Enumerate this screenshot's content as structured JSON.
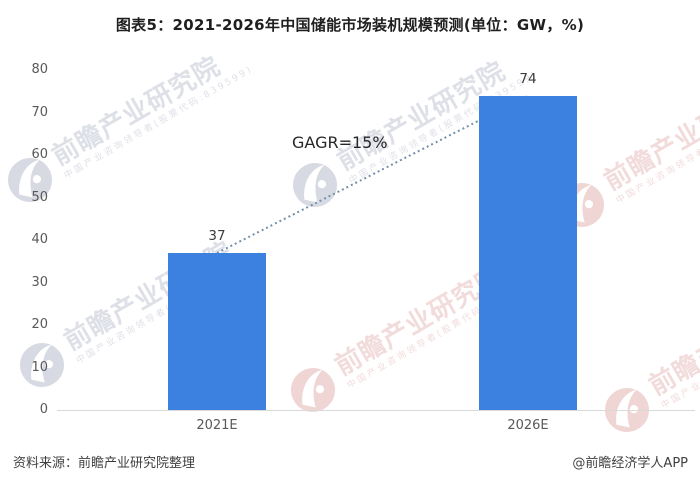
{
  "title": "图表5：2021-2026年中国储能市场装机规模预测(单位：GW，%)",
  "chart_data": {
    "type": "bar",
    "categories": [
      "2021E",
      "2026E"
    ],
    "values": [
      37,
      74
    ],
    "value_labels": [
      "37",
      "74"
    ],
    "title": "图表5：2021-2026年中国储能市场装机规模预测(单位：GW，%)",
    "xlabel": "",
    "ylabel": "",
    "unit": "GW",
    "ylim": [
      0,
      80
    ],
    "yticks": [
      0,
      10,
      20,
      30,
      40,
      50,
      60,
      70,
      80
    ],
    "grid": false,
    "legend": "none",
    "bar_color": "#3d81e0",
    "axis_line_color": "#d9d9d9",
    "annotation": {
      "label": "GAGR=15%",
      "line_style": "dotted",
      "line_color": "#7591ad",
      "connects": [
        "top of 2021E bar",
        "top of 2026E bar"
      ]
    }
  },
  "footer": {
    "source": "资料来源：前瞻产业研究院整理",
    "credit": "@前瞻经济学人APP"
  },
  "watermark": {
    "main": "前瞻产业研究院",
    "sub": "中国产业咨询领导者(股票代码:839599)"
  }
}
